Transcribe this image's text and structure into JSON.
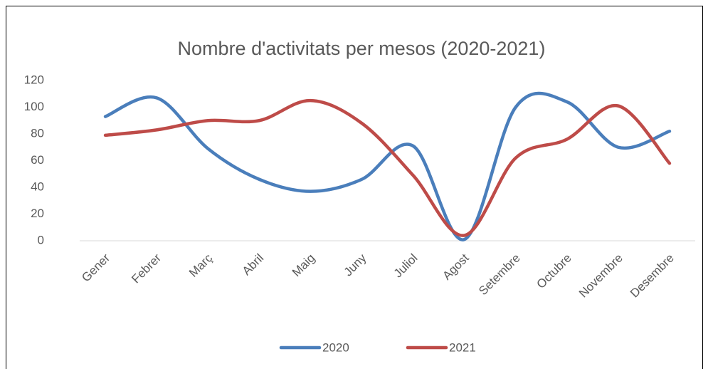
{
  "chart_data": {
    "type": "line",
    "title": "Nombre d'activitats per mesos (2020-2021)",
    "categories": [
      "Gener",
      "Febrer",
      "Març",
      "Abril",
      "Maig",
      "Juny",
      "Juliol",
      "Agost",
      "Setembre",
      "Octubre",
      "Novembre",
      "Desembre"
    ],
    "series": [
      {
        "name": "2020",
        "color": "#4a7ebb",
        "values": [
          93,
          107,
          69,
          46,
          37,
          46,
          71,
          1,
          100,
          104,
          70,
          82
        ]
      },
      {
        "name": "2021",
        "color": "#be4b48",
        "values": [
          79,
          83,
          90,
          90,
          105,
          88,
          49,
          4,
          62,
          76,
          101,
          58
        ]
      }
    ],
    "ylim": [
      0,
      120
    ],
    "yticks": [
      0,
      20,
      40,
      60,
      80,
      100,
      120
    ],
    "grid": false,
    "smooth": true,
    "legend": "bottom"
  }
}
